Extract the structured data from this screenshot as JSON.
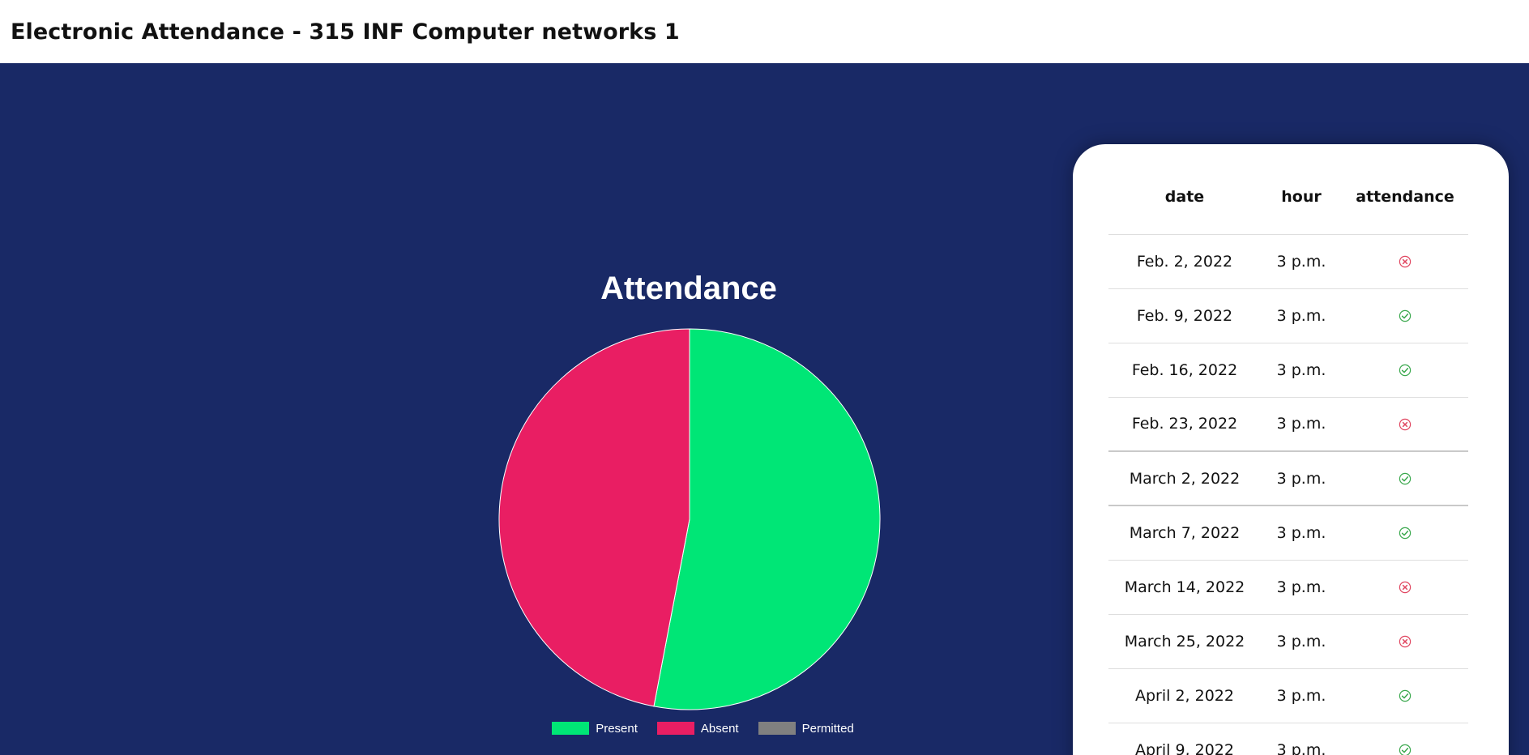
{
  "header": {
    "title": "Electronic Attendance - 315 INF Computer networks 1"
  },
  "chart_data": {
    "type": "pie",
    "title": "Attendance",
    "categories": [
      "Present",
      "Absent",
      "Permitted"
    ],
    "values": [
      53,
      47,
      0
    ],
    "colors": [
      "#00e676",
      "#e91e63",
      "#808080"
    ],
    "legend_position": "bottom"
  },
  "table": {
    "columns": [
      "date",
      "hour",
      "attendance"
    ],
    "rows": [
      {
        "date": "Feb. 2, 2022",
        "hour": "3 p.m.",
        "status": "absent"
      },
      {
        "date": "Feb. 9, 2022",
        "hour": "3 p.m.",
        "status": "present"
      },
      {
        "date": "Feb. 16, 2022",
        "hour": "3 p.m.",
        "status": "present"
      },
      {
        "date": "Feb. 23, 2022",
        "hour": "3 p.m.",
        "status": "absent"
      },
      {
        "date": "March 2, 2022",
        "hour": "3 p.m.",
        "status": "present"
      },
      {
        "date": "March 7, 2022",
        "hour": "3 p.m.",
        "status": "present"
      },
      {
        "date": "March 14, 2022",
        "hour": "3 p.m.",
        "status": "absent"
      },
      {
        "date": "March 25, 2022",
        "hour": "3 p.m.",
        "status": "absent"
      },
      {
        "date": "April 2, 2022",
        "hour": "3 p.m.",
        "status": "present"
      },
      {
        "date": "April 9, 2022",
        "hour": "3 p.m.",
        "status": "present"
      }
    ]
  },
  "colors": {
    "background": "#192966",
    "present_icon": "#3aa84d",
    "absent_icon": "#e0455f"
  },
  "icons": {
    "present": "check-circle-icon",
    "absent": "x-circle-icon"
  }
}
